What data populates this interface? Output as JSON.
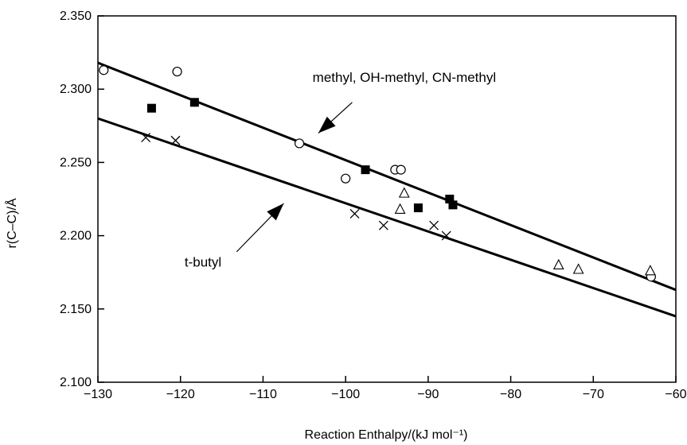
{
  "chart_data": {
    "type": "scatter",
    "xlabel": "Reaction Enthalpy/(kJ mol⁻¹)",
    "ylabel": "r(C–C)/Å",
    "xlim": [
      -130,
      -60
    ],
    "ylim": [
      2.1,
      2.35
    ],
    "x_ticks": [
      -130,
      -120,
      -110,
      -100,
      -90,
      -80,
      -70,
      -60
    ],
    "x_tick_labels": [
      "−130",
      "−120",
      "−110",
      "−100",
      "−90",
      "−80",
      "−70",
      "−60"
    ],
    "y_ticks": [
      2.1,
      2.15,
      2.2,
      2.25,
      2.3,
      2.35
    ],
    "y_tick_labels": [
      "2.100",
      "2.150",
      "2.200",
      "2.250",
      "2.300",
      "2.350"
    ],
    "grid": false,
    "series": [
      {
        "marker": "open-circle",
        "points": [
          {
            "x": -129.3,
            "y": 2.313
          },
          {
            "x": -120.4,
            "y": 2.312
          },
          {
            "x": -105.6,
            "y": 2.263
          },
          {
            "x": -100.0,
            "y": 2.239
          },
          {
            "x": -94.0,
            "y": 2.245
          },
          {
            "x": -93.3,
            "y": 2.245
          },
          {
            "x": -63.0,
            "y": 2.172
          }
        ]
      },
      {
        "marker": "filled-square",
        "points": [
          {
            "x": -123.5,
            "y": 2.287
          },
          {
            "x": -118.3,
            "y": 2.291
          },
          {
            "x": -97.6,
            "y": 2.245
          },
          {
            "x": -91.2,
            "y": 2.219
          },
          {
            "x": -87.4,
            "y": 2.225
          },
          {
            "x": -87.0,
            "y": 2.221
          }
        ]
      },
      {
        "marker": "open-triangle",
        "points": [
          {
            "x": -92.9,
            "y": 2.229
          },
          {
            "x": -93.4,
            "y": 2.218
          },
          {
            "x": -74.2,
            "y": 2.18
          },
          {
            "x": -71.8,
            "y": 2.177
          },
          {
            "x": -63.1,
            "y": 2.176
          }
        ]
      },
      {
        "marker": "cross",
        "points": [
          {
            "x": -124.2,
            "y": 2.267
          },
          {
            "x": -120.6,
            "y": 2.265
          },
          {
            "x": -98.9,
            "y": 2.215
          },
          {
            "x": -95.4,
            "y": 2.207
          },
          {
            "x": -89.3,
            "y": 2.207
          },
          {
            "x": -87.8,
            "y": 2.2
          }
        ]
      }
    ],
    "fit_lines": [
      {
        "x": [
          -130,
          -60
        ],
        "y": [
          2.318,
          2.163
        ]
      },
      {
        "x": [
          -130,
          -60
        ],
        "y": [
          2.28,
          2.145
        ]
      }
    ],
    "annotations": [
      {
        "text": "methyl, OH-methyl, CN-methyl",
        "label_at": {
          "x": -104,
          "y": 2.305
        },
        "arrow_from": {
          "x": -99.2,
          "y": 2.291
        },
        "arrow_to": {
          "x": -103.3,
          "y": 2.27
        }
      },
      {
        "text": "t-butyl",
        "label_at": {
          "x": -119.5,
          "y": 2.179
        },
        "arrow_from": {
          "x": -113.2,
          "y": 2.189
        },
        "arrow_to": {
          "x": -107.5,
          "y": 2.222
        }
      }
    ]
  }
}
